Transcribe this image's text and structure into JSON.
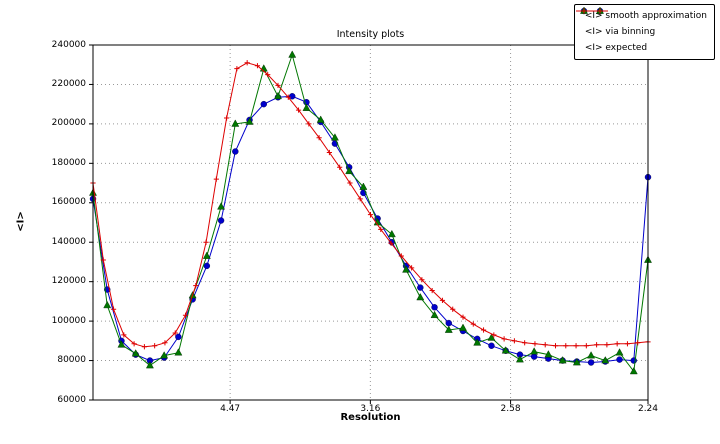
{
  "chart_data": {
    "type": "line",
    "title": "Intensity plots",
    "xlabel": "Resolution",
    "ylabel": "<I>",
    "grid": true,
    "legend_position": "top-right-outside",
    "x_scale": "1/d^2",
    "x_range": [
      0.001,
      0.1993
    ],
    "y_range": [
      60000,
      240000
    ],
    "x_ticks": [
      {
        "pos": 0.05,
        "label": "4.47"
      },
      {
        "pos": 0.1001,
        "label": "3.16"
      },
      {
        "pos": 0.1502,
        "label": "2.58"
      },
      {
        "pos": 0.1993,
        "label": "2.24"
      }
    ],
    "y_ticks": [
      60000,
      80000,
      100000,
      120000,
      140000,
      160000,
      180000,
      200000,
      220000,
      240000
    ],
    "series": [
      {
        "id": "smooth",
        "name": "<I> smooth approximation",
        "color": "#0000cc",
        "marker": "circle",
        "values": [
          162000,
          116000,
          90000,
          83000,
          80000,
          81500,
          92000,
          111000,
          128000,
          151000,
          186000,
          202000,
          210000,
          213500,
          214000,
          211000,
          201000,
          190000,
          178000,
          165000,
          152000,
          140000,
          128000,
          117000,
          107000,
          99000,
          95000,
          91000,
          87500,
          85000,
          83000,
          82000,
          81000,
          80000,
          79500,
          79000,
          79500,
          80500,
          80000,
          173000
        ]
      },
      {
        "id": "binning",
        "name": "<I> via binning",
        "color": "#007700",
        "marker": "triangle",
        "values": [
          165000,
          108000,
          88000,
          83500,
          77500,
          82500,
          84000,
          113000,
          133000,
          158000,
          200000,
          201000,
          228000,
          214000,
          235000,
          208000,
          202000,
          193000,
          176000,
          168000,
          150000,
          144000,
          126000,
          112000,
          103000,
          95500,
          96500,
          89000,
          91500,
          85000,
          80500,
          84500,
          83000,
          80000,
          79000,
          82500,
          80000,
          84000,
          74500,
          131000
        ]
      },
      {
        "id": "expected",
        "name": "<I> expected",
        "color": "#dd0000",
        "marker": "plus",
        "values": [
          170000,
          131000,
          106000,
          93000,
          88500,
          87000,
          87500,
          89000,
          94000,
          103000,
          118000,
          140000,
          172000,
          203000,
          228000,
          231000,
          229500,
          225000,
          219500,
          213500,
          207000,
          200000,
          193000,
          185500,
          178000,
          170000,
          162000,
          154000,
          146500,
          139500,
          133000,
          127000,
          121000,
          115500,
          110500,
          106000,
          102000,
          98500,
          95500,
          93000,
          91000,
          90000,
          89000,
          88500,
          88000,
          87500,
          87500,
          87500,
          87500,
          88000,
          88000,
          88500,
          88500,
          89000,
          89500
        ]
      }
    ]
  }
}
